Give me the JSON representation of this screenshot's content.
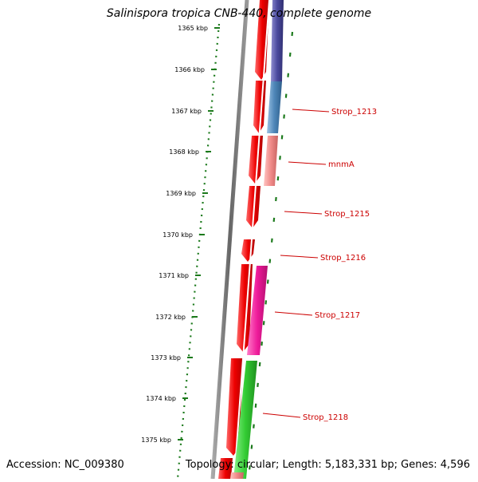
{
  "map": {
    "title": "Salinispora tropica CNB-440, complete genome",
    "accession": "Accession: NC_009380",
    "topology": "Topology: circular; Length: 5,183,331 bp; Genes: 4,596",
    "colors": {
      "tick": "#1c7a1c",
      "backbone": "#777777",
      "label": "#cc0000",
      "forward_cds": "#ee0000",
      "purple_feature": "#4b4a9e",
      "blue_feature": "#4e86b8",
      "salmon_feature": "#f08a88",
      "magenta_feature": "#ee1a9a",
      "green_feature": "#33cc33"
    },
    "ticks": [
      {
        "label": "1365 kbp"
      },
      {
        "label": "1366 kbp"
      },
      {
        "label": "1367 kbp"
      },
      {
        "label": "1368 kbp"
      },
      {
        "label": "1369 kbp"
      },
      {
        "label": "1370 kbp"
      },
      {
        "label": "1371 kbp"
      },
      {
        "label": "1372 kbp"
      },
      {
        "label": "1373 kbp"
      },
      {
        "label": "1374 kbp"
      },
      {
        "label": "1375 kbp"
      }
    ],
    "gene_labels": [
      {
        "text": "Strop_1213"
      },
      {
        "text": "mnmA"
      },
      {
        "text": "Strop_1215"
      },
      {
        "text": "Strop_1216"
      },
      {
        "text": "Strop_1217"
      },
      {
        "text": "Strop_1218"
      }
    ]
  }
}
